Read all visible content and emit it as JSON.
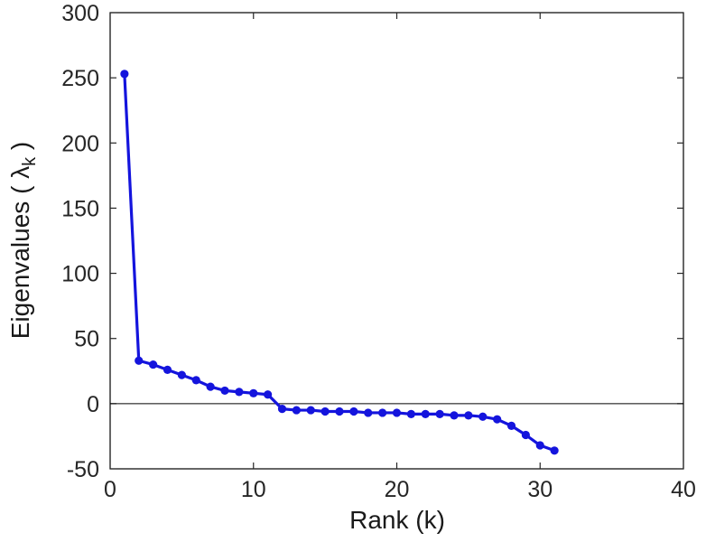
{
  "chart_data": {
    "type": "line",
    "title": "",
    "xlabel": "Rank (k)",
    "ylabel": "Eigenvalues ( λk )",
    "ylabel_parts": {
      "prefix": "Eigenvalues ( ",
      "symbol": "λ",
      "subscript": "k",
      "suffix": " )"
    },
    "xlim": [
      0,
      40
    ],
    "ylim": [
      -50,
      300
    ],
    "xticks": [
      0,
      10,
      20,
      30,
      40
    ],
    "yticks": [
      -50,
      0,
      50,
      100,
      150,
      200,
      250,
      300
    ],
    "grid": false,
    "zero_line": true,
    "legend": null,
    "line_color": "#1414dd",
    "marker": "circle",
    "x": [
      1,
      2,
      3,
      4,
      5,
      6,
      7,
      8,
      9,
      10,
      11,
      12,
      13,
      14,
      15,
      16,
      17,
      18,
      19,
      20,
      21,
      22,
      23,
      24,
      25,
      26,
      27,
      28,
      29,
      30,
      31
    ],
    "y": [
      253,
      33,
      30,
      26,
      22,
      18,
      13,
      10,
      9,
      8,
      7,
      -4,
      -5,
      -5,
      -6,
      -6,
      -6,
      -7,
      -7,
      -7,
      -8,
      -8,
      -8,
      -9,
      -9,
      -10,
      -12,
      -17,
      -24,
      -32,
      -36
    ]
  }
}
